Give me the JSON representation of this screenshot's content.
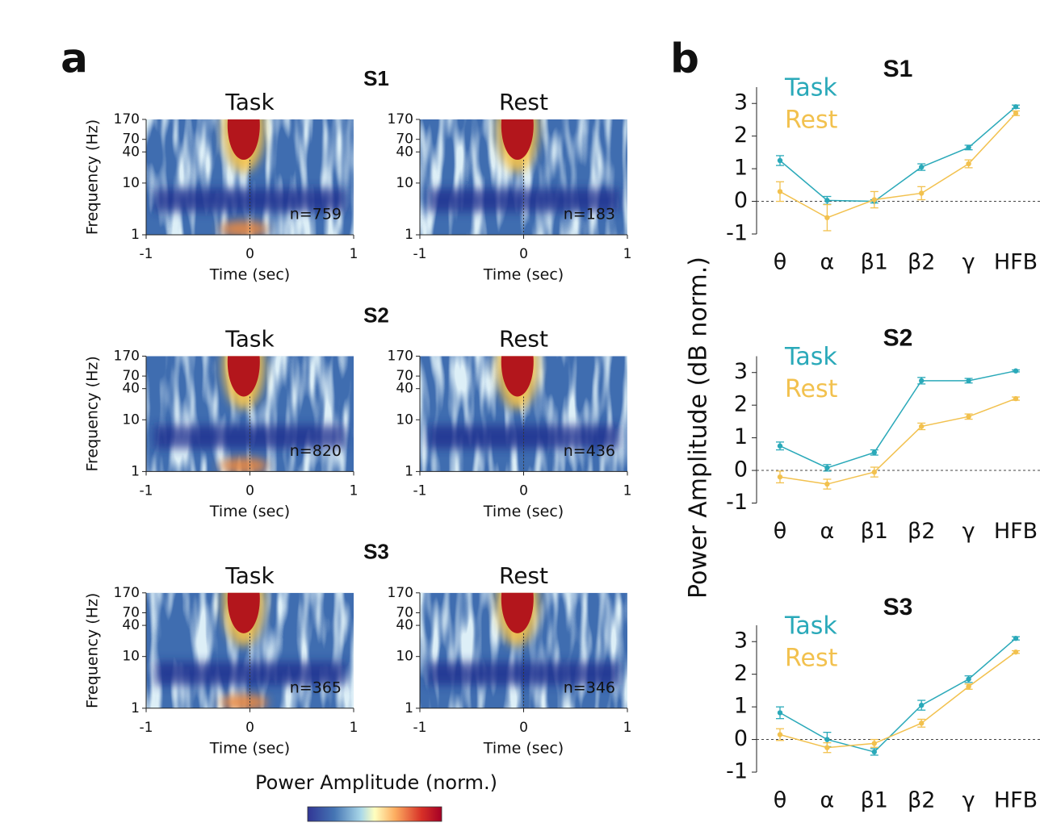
{
  "panel_a": {
    "label": "a",
    "y_label": "Frequency (Hz)",
    "x_label": "Time (sec)",
    "yscale": "log",
    "ylim": [
      1,
      170
    ],
    "yticks": [
      1,
      10,
      40,
      70,
      170
    ],
    "xlim": [
      -1,
      1
    ],
    "xticks": [
      -1,
      0,
      1
    ],
    "colorbar_label": "Power Amplitude (norm.)",
    "rows": [
      {
        "title": "S1",
        "panels": [
          {
            "title": "Task",
            "annotation": "n=759"
          },
          {
            "title": "Rest",
            "annotation": "n=183"
          }
        ]
      },
      {
        "title": "S2",
        "panels": [
          {
            "title": "Task",
            "annotation": "n=820"
          },
          {
            "title": "Rest",
            "annotation": "n=436"
          }
        ]
      },
      {
        "title": "S3",
        "panels": [
          {
            "title": "Task",
            "annotation": "n=365"
          },
          {
            "title": "Rest",
            "annotation": "n=346"
          }
        ]
      }
    ]
  },
  "panel_b": {
    "label": "b",
    "y_label": "Power Amplitude (dB norm.)"
  },
  "chart_data": [
    {
      "type": "line",
      "title": "S1",
      "categories": [
        "θ",
        "α",
        "β1",
        "β2",
        "γ",
        "HFB"
      ],
      "ylim": [
        -1,
        3.5
      ],
      "yticks": [
        -1,
        0,
        1,
        2,
        3
      ],
      "hline": 0,
      "series": [
        {
          "name": "Task",
          "color": "#2aa9b9",
          "values": [
            1.25,
            0.03,
            0.0,
            1.05,
            1.65,
            2.9
          ],
          "errors": [
            0.15,
            0.12,
            0.05,
            0.1,
            0.07,
            0.05
          ]
        },
        {
          "name": "Rest",
          "color": "#f2c14e",
          "values": [
            0.3,
            -0.5,
            0.05,
            0.25,
            1.15,
            2.7
          ],
          "errors": [
            0.3,
            0.4,
            0.25,
            0.2,
            0.12,
            0.07
          ]
        }
      ]
    },
    {
      "type": "line",
      "title": "S2",
      "categories": [
        "θ",
        "α",
        "β1",
        "β2",
        "γ",
        "HFB"
      ],
      "ylim": [
        -1,
        3.5
      ],
      "yticks": [
        -1,
        0,
        1,
        2,
        3
      ],
      "hline": 0,
      "series": [
        {
          "name": "Task",
          "color": "#2aa9b9",
          "values": [
            0.75,
            0.08,
            0.55,
            2.75,
            2.75,
            3.05
          ],
          "errors": [
            0.12,
            0.1,
            0.08,
            0.1,
            0.07,
            0.03
          ]
        },
        {
          "name": "Rest",
          "color": "#f2c14e",
          "values": [
            -0.2,
            -0.42,
            -0.05,
            1.35,
            1.65,
            2.2
          ],
          "errors": [
            0.18,
            0.15,
            0.15,
            0.1,
            0.08,
            0.05
          ]
        }
      ]
    },
    {
      "type": "line",
      "title": "S3",
      "categories": [
        "θ",
        "α",
        "β1",
        "β2",
        "γ",
        "HFB"
      ],
      "ylim": [
        -1,
        3.5
      ],
      "yticks": [
        -1,
        0,
        1,
        2,
        3
      ],
      "hline": 0,
      "series": [
        {
          "name": "Task",
          "color": "#2aa9b9",
          "values": [
            0.82,
            0.0,
            -0.38,
            1.05,
            1.85,
            3.1
          ],
          "errors": [
            0.18,
            0.22,
            0.1,
            0.15,
            0.1,
            0.05
          ]
        },
        {
          "name": "Rest",
          "color": "#f2c14e",
          "values": [
            0.15,
            -0.25,
            -0.12,
            0.5,
            1.62,
            2.68
          ],
          "errors": [
            0.18,
            0.15,
            0.12,
            0.12,
            0.08,
            0.04
          ]
        }
      ]
    }
  ]
}
